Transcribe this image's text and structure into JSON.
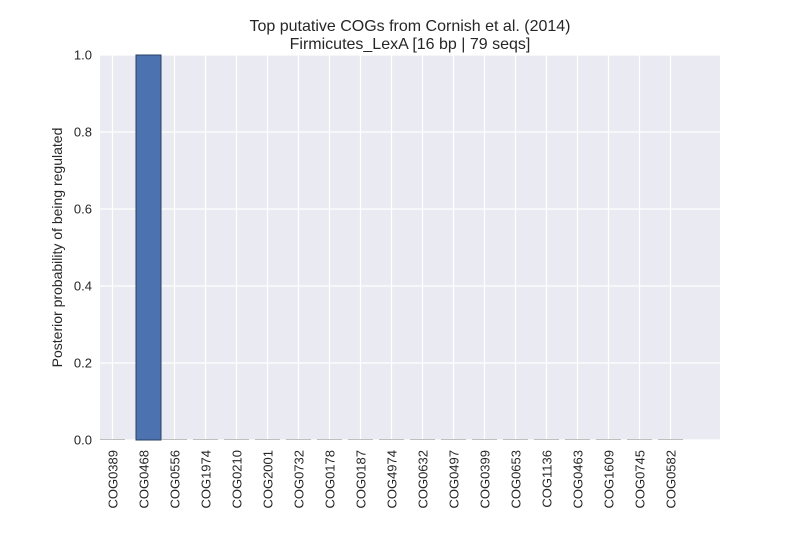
{
  "chart_data": {
    "type": "bar",
    "title": "Top putative COGs from Cornish et al. (2014)",
    "subtitle": "Firmicutes_LexA [16 bp | 79 seqs]",
    "xlabel": "",
    "ylabel": "Posterior probability of being regulated",
    "ylim": [
      0,
      1.0
    ],
    "yticks": [
      "0.0",
      "0.2",
      "0.4",
      "0.6",
      "0.8",
      "1.0"
    ],
    "grid": true,
    "categories": [
      "COG0389",
      "COG0468",
      "COG0556",
      "COG1974",
      "COG0210",
      "COG2001",
      "COG0732",
      "COG0178",
      "COG0187",
      "COG4974",
      "COG0632",
      "COG0497",
      "COG0399",
      "COG0653",
      "COG1136",
      "COG0463",
      "COG1609",
      "COG0745",
      "COG0582"
    ],
    "values": [
      0.0,
      1.0,
      0.0,
      0.0,
      0.0,
      0.0,
      0.0,
      0.0,
      0.0,
      0.0,
      0.0,
      0.0,
      0.0,
      0.0,
      0.0,
      0.0,
      0.0,
      0.0,
      0.0
    ],
    "colors": {
      "bar": "#4c72b0",
      "bar_edge": "#2a3f63",
      "plot_bg": "#eaeaf2",
      "grid": "#ffffff",
      "text": "#262626"
    }
  }
}
